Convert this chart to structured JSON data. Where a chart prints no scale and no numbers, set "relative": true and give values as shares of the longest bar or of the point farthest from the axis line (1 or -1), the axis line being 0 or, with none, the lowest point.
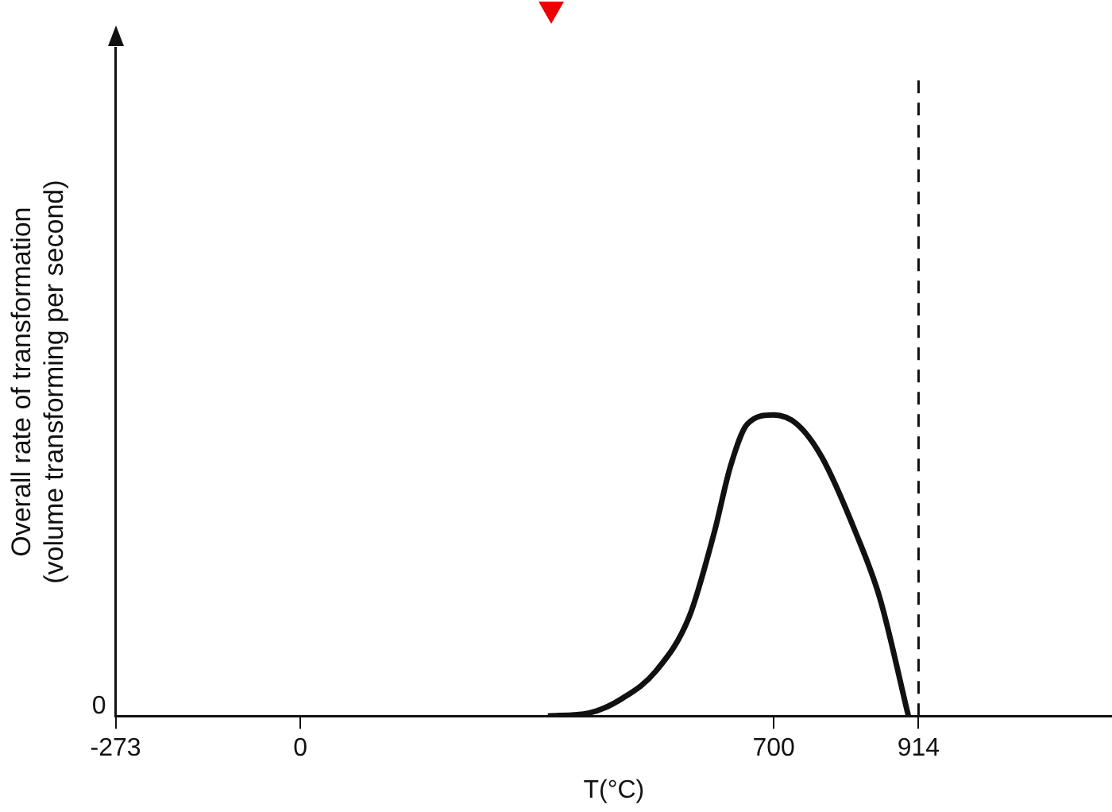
{
  "chart_data": {
    "type": "line",
    "xlabel": "T(°C)",
    "ylabel": "Overall rate of transformation (volume transforming per second)",
    "relative": true,
    "series": [
      {
        "color": "#111111",
        "x": [
          366,
          427,
          477,
          526,
          575,
          612,
          636,
          661,
          700,
          734,
          771,
          821,
          857,
          899
        ],
        "values": [
          0,
          0.01,
          0.06,
          0.15,
          0.33,
          0.61,
          0.83,
          0.97,
          1,
          0.97,
          0.86,
          0.61,
          0.39,
          0
        ]
      }
    ],
    "xlim": [
      -273,
      1200
    ],
    "xticks": [
      -273,
      0,
      700,
      914
    ],
    "ref_lines": [
      {
        "axis": "x",
        "value": 914,
        "line_style": "dashed",
        "color": "#111111"
      }
    ],
    "annotations": [
      "0"
    ],
    "grid": false,
    "legend": false,
    "marker": "none",
    "line_style": "solid"
  }
}
